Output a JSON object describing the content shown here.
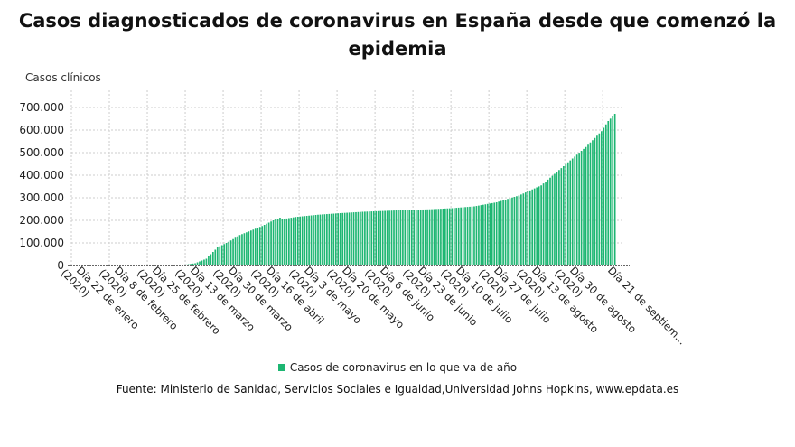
{
  "chart_data": {
    "type": "bar",
    "title": "Casos diagnosticados de coronavirus en España desde que comenzó la epidemia",
    "ylabel": "Casos clínicos",
    "xlabel": "",
    "ylim": [
      0,
      700000
    ],
    "yticks": [
      0,
      100000,
      200000,
      300000,
      400000,
      500000,
      600000,
      700000
    ],
    "ytick_labels": [
      "0",
      "100.000",
      "200.000",
      "300.000",
      "400.000",
      "500.000",
      "600.000",
      "700.000"
    ],
    "xtick_labels": [
      [
        "Día 22 de enero",
        "(2020)"
      ],
      [
        "Día 8 de febrero",
        "(2020)"
      ],
      [
        "Día 25 de febrero",
        "(2020)"
      ],
      [
        "Día 13 de marzo",
        "(2020)"
      ],
      [
        "Día 30 de marzo",
        "(2020)"
      ],
      [
        "Día 16 de abril",
        "(2020)"
      ],
      [
        "Día 3 de mayo",
        "(2020)"
      ],
      [
        "Día 20 de mayo",
        "(2020)"
      ],
      [
        "Día 6 de junio",
        "(2020)"
      ],
      [
        "Día 23 de junio",
        "(2020)"
      ],
      [
        "Día 10 de julio",
        "(2020)"
      ],
      [
        "Día 27 de julio",
        "(2020)"
      ],
      [
        "Día 13 de agosto",
        "(2020)"
      ],
      [
        "Día 30 de agosto",
        "(2020)"
      ],
      [
        "Día 21 de septiem..."
      ]
    ],
    "tick_interval_days": 17,
    "n_days": 244,
    "grid": true,
    "series": [
      {
        "name": "Casos de coronavirus en lo que va de año",
        "color": "#1db672",
        "daily_values_keypoints": {
          "day": [
            0,
            40,
            50,
            55,
            60,
            65,
            70,
            75,
            80,
            85,
            90,
            93,
            94,
            100,
            110,
            120,
            130,
            140,
            150,
            160,
            170,
            180,
            190,
            200,
            210,
            220,
            230,
            237,
            240,
            243
          ],
          "value": [
            0,
            100,
            3000,
            10000,
            30000,
            80000,
            105000,
            135000,
            155000,
            175000,
            200000,
            212000,
            205000,
            215000,
            225000,
            232000,
            238000,
            242000,
            246000,
            249000,
            254000,
            262000,
            280000,
            310000,
            355000,
            440000,
            525000,
            595000,
            640000,
            672000
          ]
        }
      }
    ],
    "legend_position": "bottom"
  },
  "legend_label": "Casos de coronavirus en lo que va de año",
  "source": "Fuente: Ministerio de Sanidad, Servicios Sociales e Igualdad,Universidad Johns Hopkins, www.epdata.es"
}
